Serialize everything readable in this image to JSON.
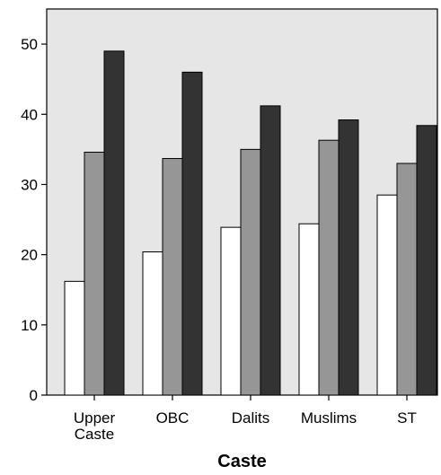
{
  "chart_data": {
    "type": "bar",
    "xlabel": "Caste",
    "ylabel": "",
    "ylim": [
      0,
      55
    ],
    "yticks": [
      0,
      10,
      20,
      30,
      40,
      50
    ],
    "categories": [
      [
        "Upper",
        "Caste"
      ],
      [
        "OBC"
      ],
      [
        "Dalits"
      ],
      [
        "Muslims"
      ],
      [
        "ST"
      ]
    ],
    "series": [
      {
        "color": "#ffffff",
        "values": [
          16.2,
          20.4,
          23.9,
          24.4,
          28.5
        ]
      },
      {
        "color": "#969696",
        "values": [
          34.6,
          33.7,
          35.0,
          36.3,
          33.0
        ]
      },
      {
        "color": "#333333",
        "values": [
          49.0,
          46.0,
          41.2,
          39.2,
          38.4
        ]
      }
    ],
    "plot_background": "#e6e6e6",
    "grid": false,
    "legend": "none"
  }
}
